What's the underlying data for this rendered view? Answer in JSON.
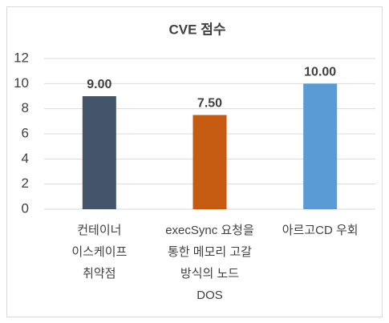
{
  "chart_data": {
    "type": "bar",
    "title": "CVE 점수",
    "categories": [
      "컨테이너\n이스케이프\n취약점",
      "execSync 요청을\n통한 메모리 고갈\n방식의 노드\nDOS",
      "아르고CD 우회"
    ],
    "values": [
      9,
      7.5,
      10
    ],
    "value_labels": [
      "9.00",
      "7.50",
      "10.00"
    ],
    "colors": [
      "#44546a",
      "#c55a11",
      "#5b9bd5"
    ],
    "ylim": [
      0,
      12
    ],
    "yticks": [
      0,
      2,
      4,
      6,
      8,
      10,
      12
    ],
    "grid": true
  }
}
